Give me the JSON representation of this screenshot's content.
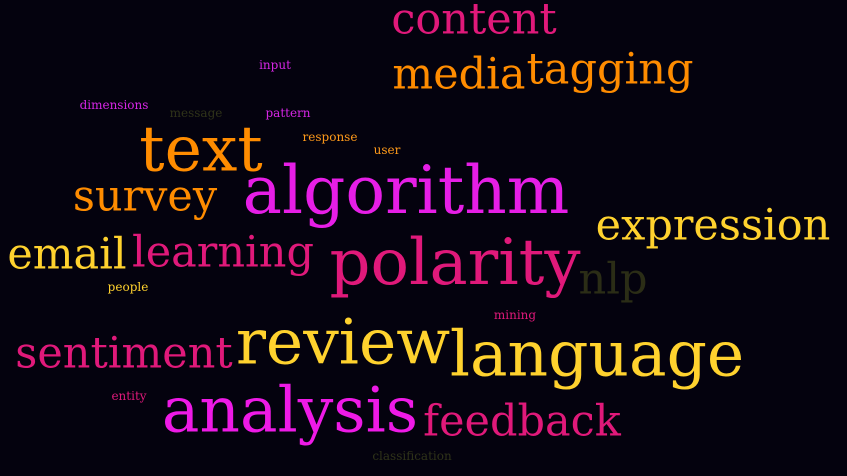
{
  "words": [
    {
      "text": "content",
      "color": "#e0197a"
    },
    {
      "text": "media",
      "color": "#ff8c00"
    },
    {
      "text": "tagging",
      "color": "#ff8c00"
    },
    {
      "text": "input",
      "color": "#d726e6"
    },
    {
      "text": "dimensions",
      "color": "#d726e6"
    },
    {
      "text": "message",
      "color": "#2f3319"
    },
    {
      "text": "pattern",
      "color": "#d726e6"
    },
    {
      "text": "response",
      "color": "#ff9a1a"
    },
    {
      "text": "user",
      "color": "#ff9a1a"
    },
    {
      "text": "text",
      "color": "#ff8c00"
    },
    {
      "text": "survey",
      "color": "#ff8c00"
    },
    {
      "text": "algorithm",
      "color": "#e61ee6"
    },
    {
      "text": "expression",
      "color": "#ffd22e"
    },
    {
      "text": "email",
      "color": "#ffd22e"
    },
    {
      "text": "learning",
      "color": "#e0197a"
    },
    {
      "text": "polarity",
      "color": "#e0197a"
    },
    {
      "text": "nlp",
      "color": "#2b2d16"
    },
    {
      "text": "people",
      "color": "#ffd22e"
    },
    {
      "text": "mining",
      "color": "#e0197a"
    },
    {
      "text": "sentiment",
      "color": "#e0197a"
    },
    {
      "text": "review",
      "color": "#ffd22e"
    },
    {
      "text": "language",
      "color": "#ffd22e"
    },
    {
      "text": "entity",
      "color": "#e0197a"
    },
    {
      "text": "analysis",
      "color": "#ee1ae6"
    },
    {
      "text": "feedback",
      "color": "#e0197a"
    },
    {
      "text": "classification",
      "color": "#2f3319"
    }
  ]
}
